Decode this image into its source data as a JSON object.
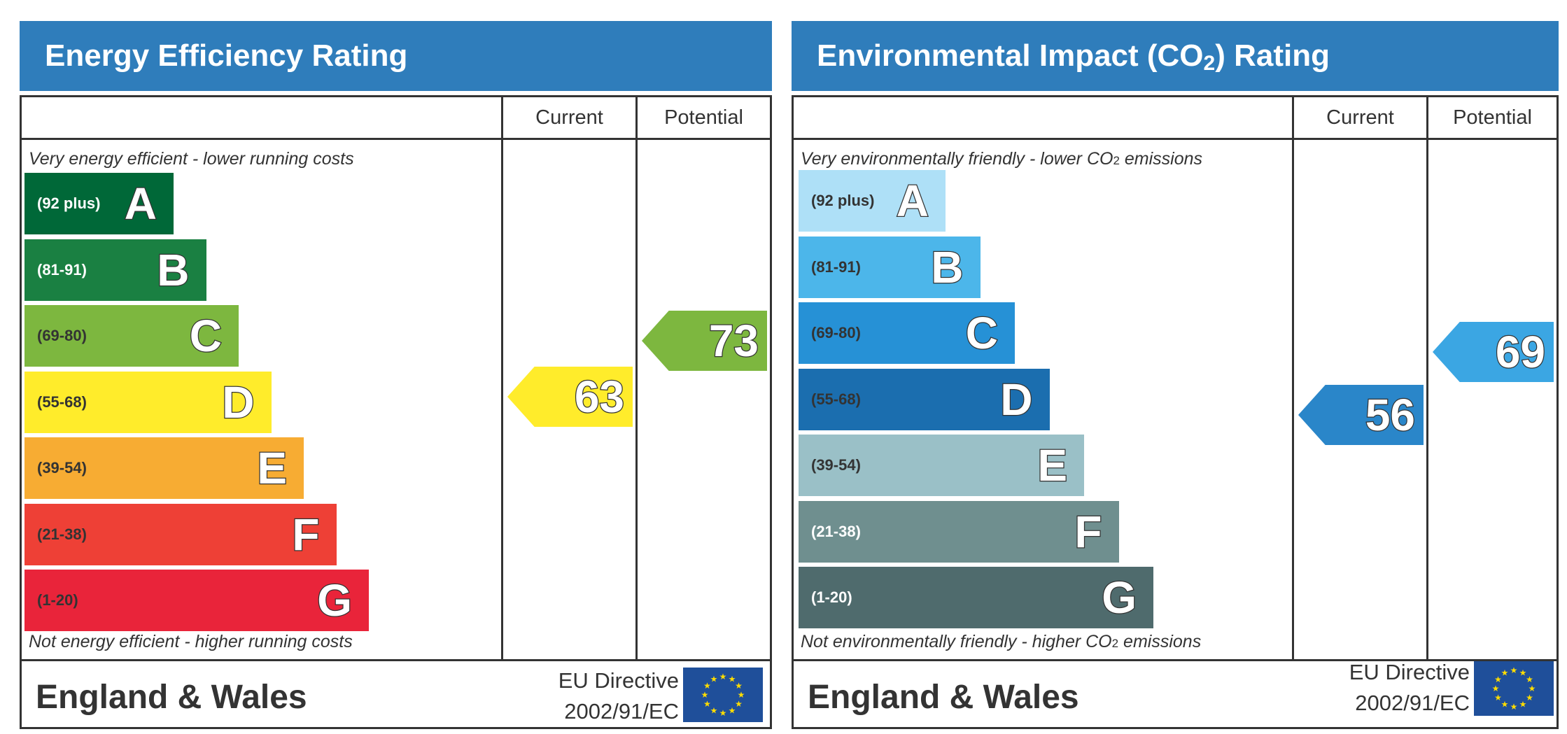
{
  "chart_data": [
    {
      "type": "bar",
      "title": "Energy Efficiency Rating",
      "columns": [
        "Current",
        "Potential"
      ],
      "top_note": "Very energy efficient - lower running costs",
      "bottom_note": "Not energy efficient - higher running costs",
      "bands": [
        {
          "letter": "A",
          "range": "(92 plus)",
          "color": "#006838",
          "text_color": "#ffffff"
        },
        {
          "letter": "B",
          "range": "(81-91)",
          "color": "#1a8042",
          "text_color": "#ffffff"
        },
        {
          "letter": "C",
          "range": "(69-80)",
          "color": "#7db73f",
          "text_color": "#333333"
        },
        {
          "letter": "D",
          "range": "(55-68)",
          "color": "#ffec2b",
          "text_color": "#333333"
        },
        {
          "letter": "E",
          "range": "(39-54)",
          "color": "#f7ac33",
          "text_color": "#333333"
        },
        {
          "letter": "F",
          "range": "(21-38)",
          "color": "#ee4036",
          "text_color": "#333333"
        },
        {
          "letter": "G",
          "range": "(1-20)",
          "color": "#e9243a",
          "text_color": "#333333"
        }
      ],
      "current": {
        "value": 63,
        "band": "D",
        "color": "#ffec2b"
      },
      "potential": {
        "value": 73,
        "band": "C",
        "color": "#7db73f"
      },
      "footer": {
        "region": "England & Wales",
        "directive_line1": "EU Directive",
        "directive_line2": "2002/91/EC"
      }
    },
    {
      "type": "bar",
      "title": "Environmental Impact (CO2) Rating",
      "columns": [
        "Current",
        "Potential"
      ],
      "top_note": "Very environmentally friendly - lower CO2 emissions",
      "bottom_note": "Not environmentally friendly - higher CO2 emissions",
      "bands": [
        {
          "letter": "A",
          "range": "(92 plus)",
          "color": "#aee0f7",
          "text_color": "#333333"
        },
        {
          "letter": "B",
          "range": "(81-91)",
          "color": "#4cb6ea",
          "text_color": "#333333"
        },
        {
          "letter": "C",
          "range": "(69-80)",
          "color": "#2691d6",
          "text_color": "#333333"
        },
        {
          "letter": "D",
          "range": "(55-68)",
          "color": "#1b6eaf",
          "text_color": "#333333"
        },
        {
          "letter": "E",
          "range": "(39-54)",
          "color": "#9ac0c7",
          "text_color": "#333333"
        },
        {
          "letter": "F",
          "range": "(21-38)",
          "color": "#6f8f8f",
          "text_color": "#ffffff"
        },
        {
          "letter": "G",
          "range": "(1-20)",
          "color": "#4f6b6d",
          "text_color": "#ffffff"
        }
      ],
      "current": {
        "value": 56,
        "band": "D",
        "color": "#2a86c9"
      },
      "potential": {
        "value": 69,
        "band": "C",
        "color": "#3ba6e3"
      },
      "footer": {
        "region": "England & Wales",
        "directive_line1": "EU Directive",
        "directive_line2": "2002/91/EC"
      }
    }
  ]
}
